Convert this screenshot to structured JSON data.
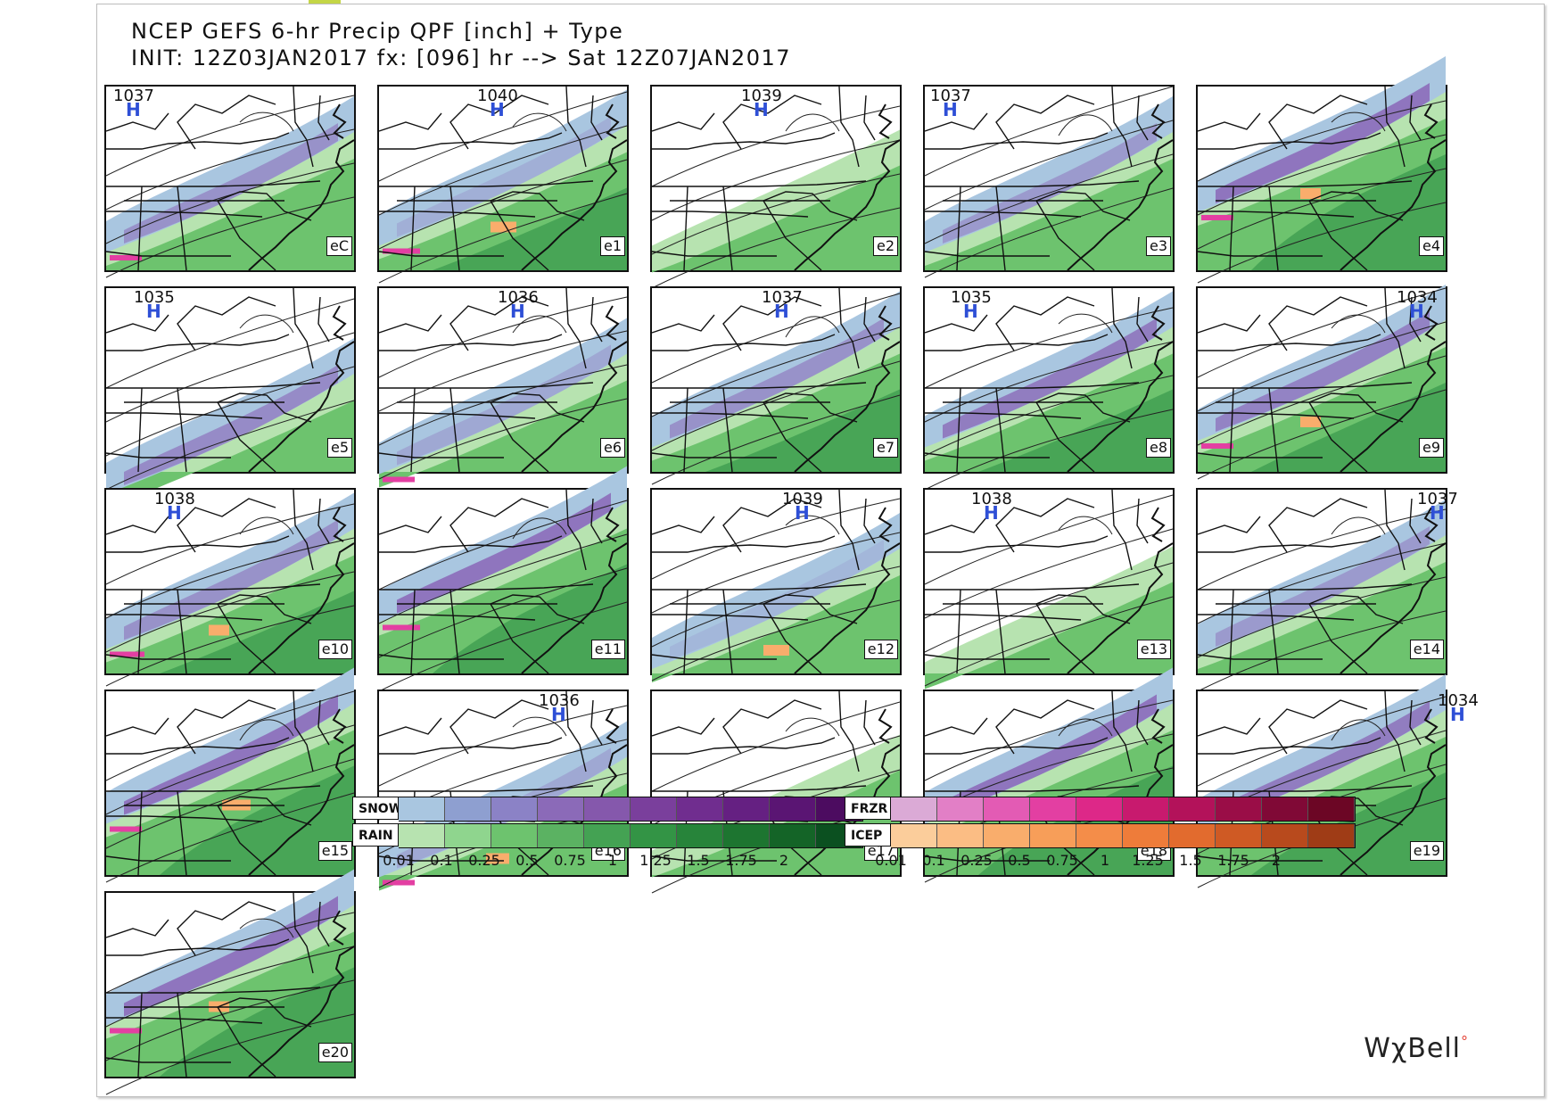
{
  "title": {
    "line1": "NCEP GEFS 6-hr Precip QPF [inch] + Type",
    "line2": "INIT: 12Z03JAN2017 fx: [096] hr --> Sat 12Z07JAN2017"
  },
  "panels": [
    {
      "label": "eC",
      "high": "1037",
      "h": "H",
      "snow": 0.35,
      "rain": 0.5,
      "mix": 0.1,
      "ice": 0
    },
    {
      "label": "e1",
      "high": "1040",
      "h": "H",
      "snow": 0.15,
      "rain": 0.55,
      "mix": 0.2,
      "ice": 0.15
    },
    {
      "label": "e2",
      "high": "1039",
      "h": "H",
      "snow": 0,
      "rain": 0.45,
      "mix": 0,
      "ice": 0
    },
    {
      "label": "e3",
      "high": "1037",
      "h": "H",
      "snow": 0.3,
      "rain": 0.5,
      "mix": 0,
      "ice": 0
    },
    {
      "label": "e4",
      "high": "",
      "h": "",
      "snow": 0.55,
      "rain": 0.8,
      "mix": 0.1,
      "ice": 0.05
    },
    {
      "label": "e5",
      "high": "1035",
      "h": "H",
      "snow": 0.4,
      "rain": 0.2,
      "mix": 0,
      "ice": 0
    },
    {
      "label": "e6",
      "high": "1036",
      "h": "H",
      "snow": 0.2,
      "rain": 0.35,
      "mix": 0.1,
      "ice": 0
    },
    {
      "label": "e7",
      "high": "1037",
      "h": "H",
      "snow": 0.35,
      "rain": 0.55,
      "mix": 0,
      "ice": 0
    },
    {
      "label": "e8",
      "high": "1035",
      "h": "H",
      "snow": 0.5,
      "rain": 0.55,
      "mix": 0,
      "ice": 0
    },
    {
      "label": "e9",
      "high": "1034",
      "h": "H",
      "snow": 0.45,
      "rain": 0.6,
      "mix": 0.1,
      "ice": 0.05
    },
    {
      "label": "e10",
      "high": "1038",
      "h": "H",
      "snow": 0.35,
      "rain": 0.55,
      "mix": 0.15,
      "ice": 0.05
    },
    {
      "label": "e11",
      "high": "",
      "h": "",
      "snow": 0.55,
      "rain": 0.75,
      "mix": 0.2,
      "ice": 0
    },
    {
      "label": "e12",
      "high": "1039",
      "h": "H",
      "snow": 0.1,
      "rain": 0.4,
      "mix": 0,
      "ice": 0.15
    },
    {
      "label": "e13",
      "high": "1038",
      "h": "H",
      "snow": 0,
      "rain": 0.35,
      "mix": 0,
      "ice": 0
    },
    {
      "label": "e14",
      "high": "1037",
      "h": "H",
      "snow": 0.3,
      "rain": 0.5,
      "mix": 0,
      "ice": 0
    },
    {
      "label": "e15",
      "high": "",
      "h": "",
      "snow": 0.55,
      "rain": 0.75,
      "mix": 0.1,
      "ice": 0.2
    },
    {
      "label": "e16",
      "high": "1036",
      "h": "H",
      "snow": 0.2,
      "rain": 0.35,
      "mix": 0.1,
      "ice": 0.1
    },
    {
      "label": "e17",
      "high": "",
      "h": "",
      "snow": 0,
      "rain": 0.45,
      "mix": 0,
      "ice": 0
    },
    {
      "label": "e18",
      "high": "",
      "h": "",
      "snow": 0.55,
      "rain": 0.75,
      "mix": 0,
      "ice": 0
    },
    {
      "label": "e19",
      "high": "1034",
      "h": "H",
      "snow": 0.5,
      "rain": 0.7,
      "mix": 0,
      "ice": 0
    },
    {
      "label": "e20",
      "high": "",
      "h": "",
      "snow": 0.55,
      "rain": 0.75,
      "mix": 0.1,
      "ice": 0.05
    }
  ],
  "legend_left": {
    "snow_label": "SNOW",
    "rain_label": "RAIN",
    "snow_colors": [
      "#a9c6e0",
      "#8e9fd0",
      "#8b82c6",
      "#8b6ab8",
      "#8558ac",
      "#7a3f9c",
      "#702d8f",
      "#652082",
      "#5a1573",
      "#4c0c60"
    ],
    "rain_colors": [
      "#b7e3b0",
      "#8fd58e",
      "#6dc36e",
      "#5bb262",
      "#44a253",
      "#339445",
      "#27843a",
      "#1d7530",
      "#146427",
      "#0b5020"
    ],
    "ticks": [
      "0.01",
      "0.1",
      "0.25",
      "0.5",
      "0.75",
      "1",
      "1.25",
      "1.5",
      "1.75",
      "2"
    ]
  },
  "legend_right": {
    "frzr_label": "FRZR",
    "icep_label": "ICEP",
    "frzr_colors": [
      "#dbaad6",
      "#e27fc6",
      "#e35bb4",
      "#e33fa2",
      "#dd2888",
      "#c81a6e",
      "#b3125a",
      "#9a0d47",
      "#800936",
      "#6c0625"
    ],
    "icep_colors": [
      "#fbcd9b",
      "#fbbd84",
      "#f9ad6c",
      "#f79e59",
      "#f48d49",
      "#ee7c3a",
      "#e26b2e",
      "#cf5a24",
      "#b84a1d",
      "#9f3c16"
    ],
    "ticks": [
      "0.01",
      "0.1",
      "0.25",
      "0.5",
      "0.75",
      "1",
      "1.25",
      "1.5",
      "1.75",
      "2"
    ]
  },
  "brand": {
    "name": "WχBell",
    "dot": "°"
  }
}
